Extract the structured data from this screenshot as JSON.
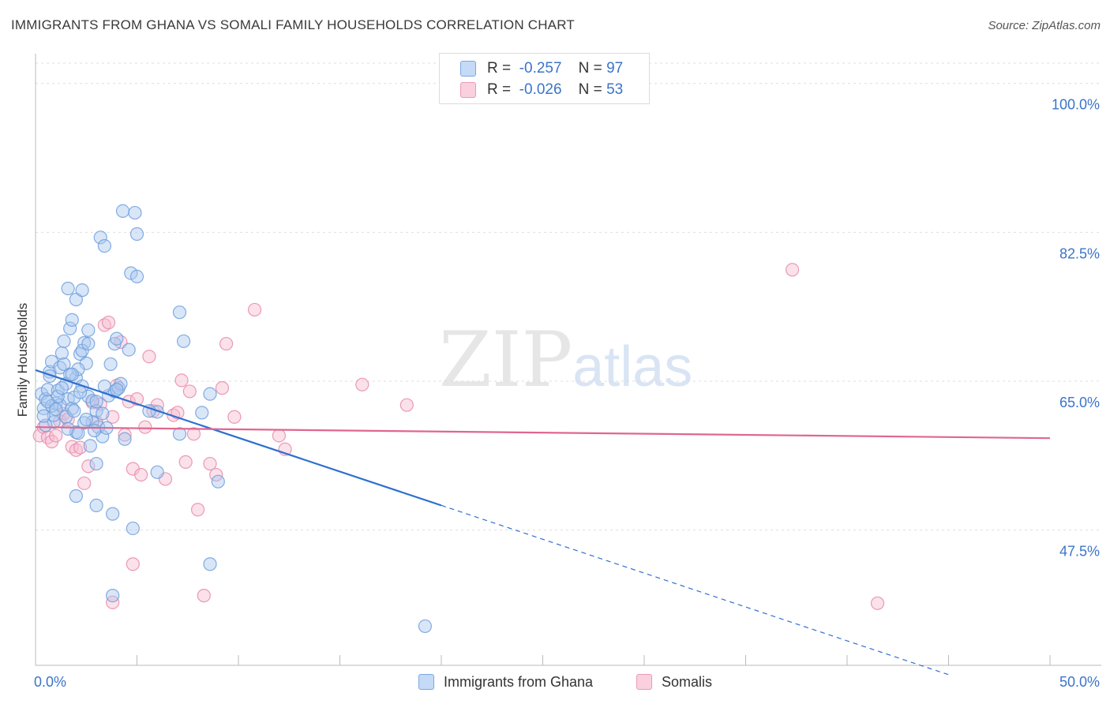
{
  "header": {
    "title": "IMMIGRANTS FROM GHANA VS SOMALI FAMILY HOUSEHOLDS CORRELATION CHART",
    "source": "Source: ZipAtlas.com"
  },
  "watermark": {
    "zip": "ZIP",
    "atlas": "atlas"
  },
  "legend": {
    "rows": [
      {
        "r_label": "R =",
        "r_value": "-0.257",
        "n_label": "N =",
        "n_value": "97"
      },
      {
        "r_label": "R =",
        "r_value": "-0.026",
        "n_label": "N =",
        "n_value": "53"
      }
    ]
  },
  "bottom_legend": {
    "series1": "Immigrants from Ghana",
    "series2": "Somalis"
  },
  "colors": {
    "ghana_fill": "#aac8f0",
    "ghana_stroke": "#6d9fdc",
    "ghana_line": "#2f6fd0",
    "somali_fill": "#f6bcd0",
    "somali_stroke": "#e88aaa",
    "somali_line": "#e0668f"
  },
  "chart_data": {
    "type": "scatter",
    "title": "IMMIGRANTS FROM GHANA VS SOMALI FAMILY HOUSEHOLDS CORRELATION CHART",
    "xlabel": "",
    "ylabel": "Family Households",
    "xlim": [
      0,
      50
    ],
    "ylim": [
      31.6,
      103.5
    ],
    "x_tick_labels": [
      "0.0%",
      "50.0%"
    ],
    "y_ticks": [
      47.5,
      65.0,
      82.5,
      100.0
    ],
    "y_tick_labels": [
      "47.5%",
      "65.0%",
      "82.5%",
      "100.0%"
    ],
    "grid": true,
    "series": [
      {
        "name": "Immigrants from Ghana",
        "points": [
          [
            0.3,
            63.5
          ],
          [
            0.4,
            61.8
          ],
          [
            0.5,
            62.9
          ],
          [
            0.6,
            64.0
          ],
          [
            0.7,
            66.1
          ],
          [
            0.8,
            67.3
          ],
          [
            0.9,
            60.2
          ],
          [
            0.5,
            59.8
          ],
          [
            1.0,
            62.4
          ],
          [
            1.1,
            63.9
          ],
          [
            0.7,
            65.6
          ],
          [
            1.2,
            66.6
          ],
          [
            1.3,
            68.3
          ],
          [
            1.4,
            67.0
          ],
          [
            1.5,
            64.7
          ],
          [
            1.6,
            62.9
          ],
          [
            1.8,
            61.8
          ],
          [
            1.9,
            63.1
          ],
          [
            2.0,
            65.4
          ],
          [
            1.2,
            62.2
          ],
          [
            1.4,
            69.7
          ],
          [
            1.7,
            71.2
          ],
          [
            1.6,
            75.9
          ],
          [
            1.8,
            72.2
          ],
          [
            2.0,
            74.6
          ],
          [
            2.3,
            75.7
          ],
          [
            2.6,
            71.0
          ],
          [
            2.4,
            69.5
          ],
          [
            2.2,
            68.2
          ],
          [
            2.5,
            67.1
          ],
          [
            2.1,
            66.4
          ],
          [
            2.3,
            64.4
          ],
          [
            2.6,
            63.2
          ],
          [
            2.8,
            62.7
          ],
          [
            3.0,
            61.5
          ],
          [
            2.8,
            60.2
          ],
          [
            3.1,
            59.6
          ],
          [
            3.3,
            58.5
          ],
          [
            2.7,
            57.4
          ],
          [
            2.9,
            59.2
          ],
          [
            3.5,
            59.5
          ],
          [
            3.6,
            63.3
          ],
          [
            3.7,
            67.0
          ],
          [
            3.9,
            69.4
          ],
          [
            4.0,
            70.0
          ],
          [
            3.9,
            63.8
          ],
          [
            4.1,
            64.2
          ],
          [
            4.2,
            64.7
          ],
          [
            4.4,
            58.2
          ],
          [
            4.6,
            68.7
          ],
          [
            3.2,
            81.9
          ],
          [
            3.4,
            80.9
          ],
          [
            4.3,
            85.0
          ],
          [
            4.9,
            84.8
          ],
          [
            5.0,
            82.3
          ],
          [
            4.7,
            77.7
          ],
          [
            5.0,
            77.3
          ],
          [
            7.1,
            73.1
          ],
          [
            7.3,
            69.7
          ],
          [
            7.1,
            58.8
          ],
          [
            8.2,
            61.3
          ],
          [
            8.6,
            63.5
          ],
          [
            9.0,
            53.2
          ],
          [
            8.6,
            43.5
          ],
          [
            3.0,
            55.3
          ],
          [
            3.8,
            49.4
          ],
          [
            4.8,
            47.7
          ],
          [
            2.0,
            51.5
          ],
          [
            3.0,
            50.4
          ],
          [
            3.8,
            39.8
          ],
          [
            2.0,
            59.0
          ],
          [
            2.4,
            60.1
          ],
          [
            3.0,
            62.6
          ],
          [
            1.5,
            60.8
          ],
          [
            0.9,
            61.0
          ],
          [
            0.8,
            62.1
          ],
          [
            1.1,
            63.2
          ],
          [
            1.3,
            64.2
          ],
          [
            0.6,
            62.6
          ],
          [
            1.7,
            65.8
          ],
          [
            1.9,
            61.5
          ],
          [
            2.2,
            63.7
          ],
          [
            3.4,
            64.4
          ],
          [
            2.5,
            60.5
          ],
          [
            4.0,
            64.0
          ],
          [
            0.4,
            60.9
          ],
          [
            1.0,
            61.7
          ],
          [
            1.6,
            59.4
          ],
          [
            6.0,
            54.3
          ],
          [
            6.0,
            61.4
          ],
          [
            3.3,
            61.2
          ],
          [
            1.8,
            65.8
          ],
          [
            2.3,
            68.6
          ],
          [
            2.6,
            69.4
          ],
          [
            19.2,
            36.2
          ],
          [
            5.6,
            61.5
          ],
          [
            2.1,
            58.9
          ]
        ]
      },
      {
        "name": "Somalis",
        "points": [
          [
            0.2,
            58.6
          ],
          [
            0.4,
            59.6
          ],
          [
            0.6,
            58.4
          ],
          [
            0.8,
            57.9
          ],
          [
            1.0,
            58.6
          ],
          [
            1.2,
            60.3
          ],
          [
            1.4,
            61.2
          ],
          [
            1.6,
            60.5
          ],
          [
            1.8,
            57.3
          ],
          [
            2.0,
            56.9
          ],
          [
            2.2,
            57.2
          ],
          [
            2.4,
            53.0
          ],
          [
            2.6,
            55.0
          ],
          [
            2.8,
            62.5
          ],
          [
            3.0,
            60.2
          ],
          [
            3.2,
            62.3
          ],
          [
            3.4,
            71.6
          ],
          [
            3.6,
            71.9
          ],
          [
            3.8,
            60.8
          ],
          [
            4.0,
            64.5
          ],
          [
            4.2,
            69.6
          ],
          [
            4.4,
            58.7
          ],
          [
            4.6,
            62.6
          ],
          [
            4.8,
            54.7
          ],
          [
            5.0,
            62.9
          ],
          [
            5.2,
            54.0
          ],
          [
            5.4,
            59.6
          ],
          [
            5.6,
            67.9
          ],
          [
            5.8,
            61.5
          ],
          [
            6.0,
            62.2
          ],
          [
            6.4,
            53.5
          ],
          [
            6.8,
            61.0
          ],
          [
            7.0,
            61.3
          ],
          [
            7.2,
            65.1
          ],
          [
            7.4,
            55.5
          ],
          [
            7.6,
            63.8
          ],
          [
            7.8,
            58.8
          ],
          [
            8.0,
            49.9
          ],
          [
            8.3,
            39.8
          ],
          [
            8.6,
            55.3
          ],
          [
            8.9,
            54.0
          ],
          [
            9.2,
            64.2
          ],
          [
            9.4,
            69.4
          ],
          [
            9.8,
            60.8
          ],
          [
            10.8,
            73.4
          ],
          [
            12.0,
            58.6
          ],
          [
            12.3,
            57.0
          ],
          [
            16.1,
            64.6
          ],
          [
            18.3,
            62.2
          ],
          [
            37.3,
            78.1
          ],
          [
            41.5,
            38.9
          ],
          [
            4.8,
            43.5
          ],
          [
            3.8,
            39.0
          ]
        ]
      }
    ],
    "trend_lines": [
      {
        "series": "Immigrants from Ghana",
        "x0": 0,
        "y0": 66.3,
        "x1": 20,
        "y1": 50.4,
        "dashed_to_x": 45,
        "dashed_to_y": 30.5
      },
      {
        "series": "Somalis",
        "x0": 0,
        "y0": 59.6,
        "x1": 50,
        "y1": 58.3
      }
    ]
  }
}
